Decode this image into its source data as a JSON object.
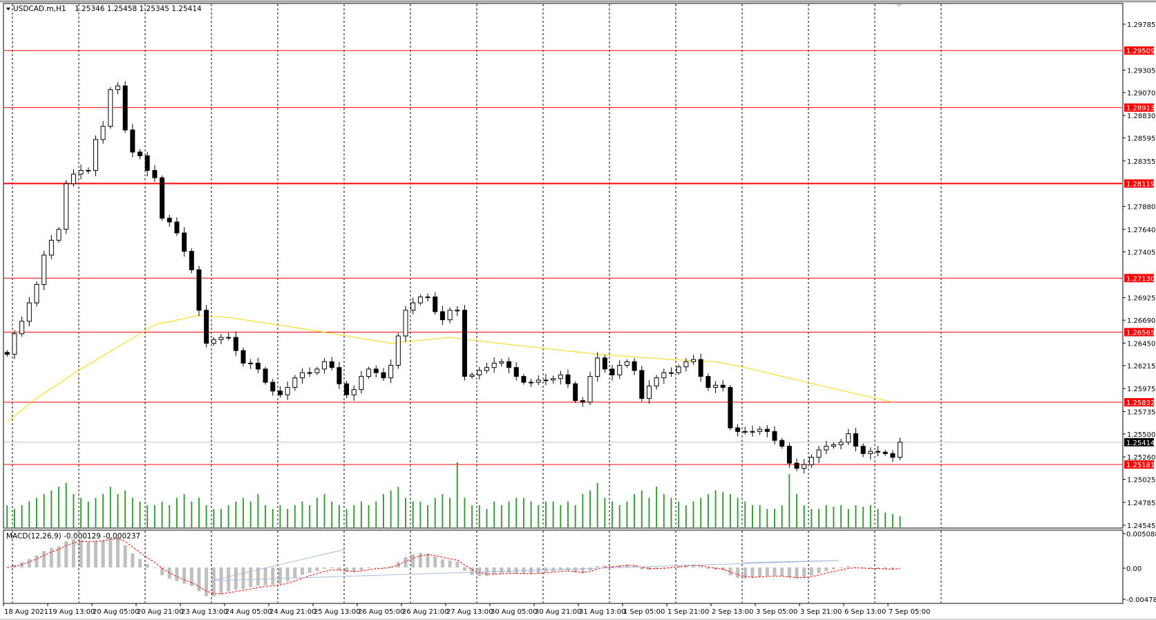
{
  "header": {
    "symbol_label": "USDCAD.m,H1",
    "ohlc": "1.25346 1.25458 1.25345 1.25414",
    "menu_icon": "triangle-down-icon"
  },
  "macd_header": {
    "label": "MACD(12,26,9) -0.000129 -0.000237"
  },
  "colors": {
    "level_line": "#ff0000",
    "moving_average": "#ffd700",
    "volume": "#3a9c3a",
    "macd_histogram": "#c0c0c0",
    "macd_signal": "#ff0000",
    "trendline": "#a9bcdc",
    "bull_candle": "#ffffff",
    "bear_candle": "#000000"
  },
  "chart_data": [
    {
      "type": "candlestick",
      "symbol": "USDCAD.m",
      "timeframe": "H1",
      "ylim": [
        1.24545,
        1.29785
      ],
      "grid": true,
      "price_ticks": [
        "1.29785",
        "1.29305",
        "1.29070",
        "1.28830",
        "1.28595",
        "1.28355",
        "1.27880",
        "1.27640",
        "1.27405",
        "1.26925",
        "1.26690",
        "1.26450",
        "1.26215",
        "1.25975",
        "1.25735",
        "1.25500",
        "1.25260",
        "1.25025",
        "1.24785",
        "1.24545"
      ],
      "time_ticks": [
        "18 Aug 2021",
        "19 Aug 13:00",
        "20 Aug 05:00",
        "20 Aug 21:00",
        "23 Aug 13:00",
        "24 Aug 05:00",
        "24 Aug 21:00",
        "25 Aug 13:00",
        "26 Aug 05:00",
        "26 Aug 21:00",
        "27 Aug 13:00",
        "30 Aug 05:00",
        "30 Aug 21:00",
        "31 Aug 13:00",
        "1 Sep 05:00",
        "1 Sep 21:00",
        "2 Sep 13:00",
        "3 Sep 05:00",
        "3 Sep 21:00",
        "6 Sep 13:00",
        "7 Sep 05:00"
      ],
      "levels": [
        "1.29509",
        "1.28913",
        "1.28119",
        "1.27130",
        "1.26565",
        "1.25832",
        "1.25181"
      ],
      "current_price": "1.25414",
      "closes": [
        1.26333,
        1.26548,
        1.26679,
        1.26871,
        1.27064,
        1.27371,
        1.27525,
        1.2764,
        1.28117,
        1.28217,
        1.28256,
        1.28256,
        1.28579,
        1.28717,
        1.29101,
        1.2914,
        1.28679,
        1.28448,
        1.28409,
        1.28256,
        1.28179,
        1.27756,
        1.27717,
        1.27602,
        1.2741,
        1.27217,
        1.26794,
        1.26448,
        1.26487,
        1.2651,
        1.2651,
        1.26372,
        1.26241,
        1.26241,
        1.26179,
        1.26041,
        1.25949,
        1.2591,
        1.25987,
        1.26087,
        1.26141,
        1.26141,
        1.26179,
        1.26256,
        1.26195,
        1.26025,
        1.2591,
        1.25964,
        1.26102,
        1.26179,
        1.26141,
        1.26087,
        1.26218,
        1.26525,
        1.26794,
        1.26871,
        1.26933,
        1.26933,
        1.26779,
        1.26694,
        1.26794,
        1.26794,
        1.26102,
        1.26118,
        1.26164,
        1.26195,
        1.26241,
        1.26256,
        1.26195,
        1.26102,
        1.26041,
        1.26041,
        1.26064,
        1.26064,
        1.26079,
        1.26118,
        1.26025,
        1.25849,
        1.25833,
        1.26102,
        1.26295,
        1.26179,
        1.26118,
        1.26218,
        1.26256,
        1.26164,
        1.25872,
        1.26002,
        1.26087,
        1.26141,
        1.26141,
        1.26202,
        1.26256,
        1.26279,
        1.26102,
        1.25987,
        1.2601,
        1.25987,
        1.25564,
        1.25526,
        1.25526,
        1.25526,
        1.25549,
        1.25526,
        1.25433,
        1.25372,
        1.25195,
        1.25141,
        1.2518,
        1.25256,
        1.25333,
        1.25372,
        1.25387,
        1.25414,
        1.25503,
        1.25372,
        1.25295,
        1.25318,
        1.2531,
        1.25295,
        1.25256,
        1.25414
      ],
      "volume": [
        30,
        25,
        30,
        35,
        40,
        45,
        50,
        55,
        60,
        45,
        40,
        35,
        40,
        45,
        55,
        45,
        50,
        40,
        35,
        30,
        30,
        35,
        30,
        40,
        45,
        35,
        40,
        30,
        25,
        25,
        30,
        35,
        40,
        35,
        45,
        30,
        25,
        30,
        25,
        30,
        35,
        30,
        40,
        45,
        35,
        30,
        25,
        30,
        35,
        30,
        35,
        45,
        50,
        55,
        40,
        35,
        35,
        30,
        40,
        45,
        40,
        88,
        40,
        30,
        30,
        25,
        35,
        30,
        35,
        40,
        40,
        35,
        30,
        35,
        35,
        30,
        35,
        30,
        45,
        50,
        60,
        40,
        35,
        30,
        35,
        45,
        50,
        40,
        55,
        45,
        40,
        35,
        30,
        35,
        40,
        45,
        50,
        48,
        45,
        40,
        35,
        30,
        30,
        25,
        25,
        30,
        72,
        45,
        30,
        25,
        25,
        30,
        28,
        30,
        25,
        30,
        28,
        30,
        25,
        20,
        18,
        15
      ],
      "moving_average": [
        [
          0,
          1.25626
        ],
        [
          4,
          1.25872
        ],
        [
          10,
          1.26179
        ],
        [
          15,
          1.2641
        ],
        [
          20,
          1.26641
        ],
        [
          26,
          1.26741
        ],
        [
          30,
          1.26718
        ],
        [
          40,
          1.26602
        ],
        [
          52,
          1.26448
        ],
        [
          60,
          1.2651
        ],
        [
          64,
          1.26471
        ],
        [
          80,
          1.26333
        ],
        [
          90,
          1.26279
        ],
        [
          96,
          1.26256
        ],
        [
          100,
          1.26195
        ],
        [
          110,
          1.2601
        ],
        [
          120,
          1.25833
        ]
      ]
    },
    {
      "type": "bar",
      "indicator": "MACD(12,26,9)",
      "main": "-0.000129",
      "signal": "-0.000237",
      "ylim": [
        -0.004788,
        0.005088
      ],
      "ticks": [
        "0.005088",
        "0.00",
        "-0.004788"
      ]
    }
  ]
}
